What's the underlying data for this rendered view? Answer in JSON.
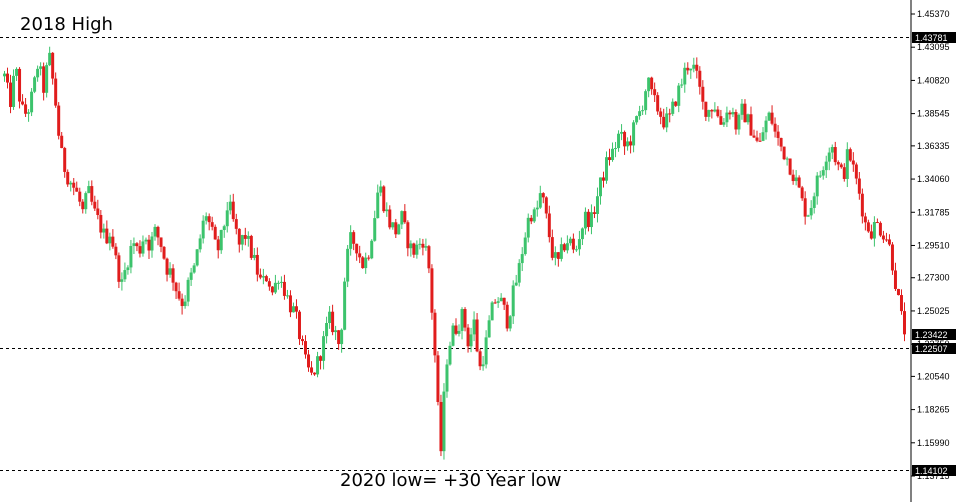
{
  "chart_data": {
    "type": "candlestick",
    "title": "",
    "xlabel": "",
    "ylabel": "",
    "ylim": [
      1.1371,
      1.4565
    ],
    "grid": false,
    "legend": "none",
    "colors": {
      "up": "#26a69a",
      "up_body": "#3cc36c",
      "down": "#e01c1c",
      "level_line": "#000000",
      "badge_bg": "#000000",
      "badge_text": "#ffffff"
    },
    "y_ticks": [
      "1.45370",
      "1.43095",
      "1.40820",
      "1.38545",
      "1.36335",
      "1.34060",
      "1.31785",
      "1.29510",
      "1.27300",
      "1.25025",
      "1.22750",
      "1.20540",
      "1.18265",
      "1.15990",
      "1.13715"
    ],
    "levels": [
      {
        "label": "1.43781",
        "value": 1.43781
      },
      {
        "label": "1.22507",
        "value": 1.22507
      },
      {
        "label": "1.14102",
        "value": 1.14102
      }
    ],
    "current_price": {
      "label": "1.23422",
      "value": 1.23422
    },
    "annotations": [
      {
        "id": "high",
        "text": "2018 High"
      },
      {
        "id": "low",
        "text": "2020 low= +30 Year low"
      }
    ],
    "close_path": [
      1.411,
      1.392,
      1.417,
      1.388,
      1.385,
      1.398,
      1.42,
      1.403,
      1.425,
      1.398,
      1.36,
      1.345,
      1.338,
      1.33,
      1.318,
      1.332,
      1.318,
      1.31,
      1.3,
      1.305,
      1.283,
      1.268,
      1.285,
      1.298,
      1.29,
      1.303,
      1.295,
      1.305,
      1.296,
      1.28,
      1.275,
      1.262,
      1.255,
      1.27,
      1.28,
      1.3,
      1.318,
      1.305,
      1.29,
      1.303,
      1.325,
      1.31,
      1.295,
      1.303,
      1.292,
      1.28,
      1.268,
      1.275,
      1.262,
      1.275,
      1.266,
      1.255,
      1.248,
      1.23,
      1.212,
      1.205,
      1.215,
      1.228,
      1.245,
      1.238,
      1.225,
      1.28,
      1.3,
      1.295,
      1.282,
      1.288,
      1.31,
      1.338,
      1.322,
      1.31,
      1.305,
      1.315,
      1.3,
      1.29,
      1.295,
      1.3,
      1.278,
      1.22,
      1.15,
      1.215,
      1.235,
      1.24,
      1.248,
      1.228,
      1.242,
      1.21,
      1.225,
      1.248,
      1.26,
      1.255,
      1.243,
      1.262,
      1.278,
      1.3,
      1.318,
      1.315,
      1.332,
      1.312,
      1.29,
      1.282,
      1.295,
      1.3,
      1.288,
      1.305,
      1.315,
      1.312,
      1.328,
      1.342,
      1.355,
      1.36,
      1.372,
      1.362,
      1.368,
      1.38,
      1.39,
      1.408,
      1.395,
      1.388,
      1.38,
      1.382,
      1.395,
      1.405,
      1.418,
      1.42,
      1.408,
      1.39,
      1.388,
      1.392,
      1.378,
      1.385,
      1.39,
      1.375,
      1.388,
      1.38,
      1.372,
      1.362,
      1.378,
      1.385,
      1.37,
      1.362,
      1.355,
      1.345,
      1.335,
      1.32,
      1.318,
      1.335,
      1.345,
      1.358,
      1.365,
      1.35,
      1.342,
      1.36,
      1.345,
      1.33,
      1.31,
      1.305,
      1.31,
      1.305,
      1.3,
      1.28,
      1.255,
      1.23422
    ]
  }
}
